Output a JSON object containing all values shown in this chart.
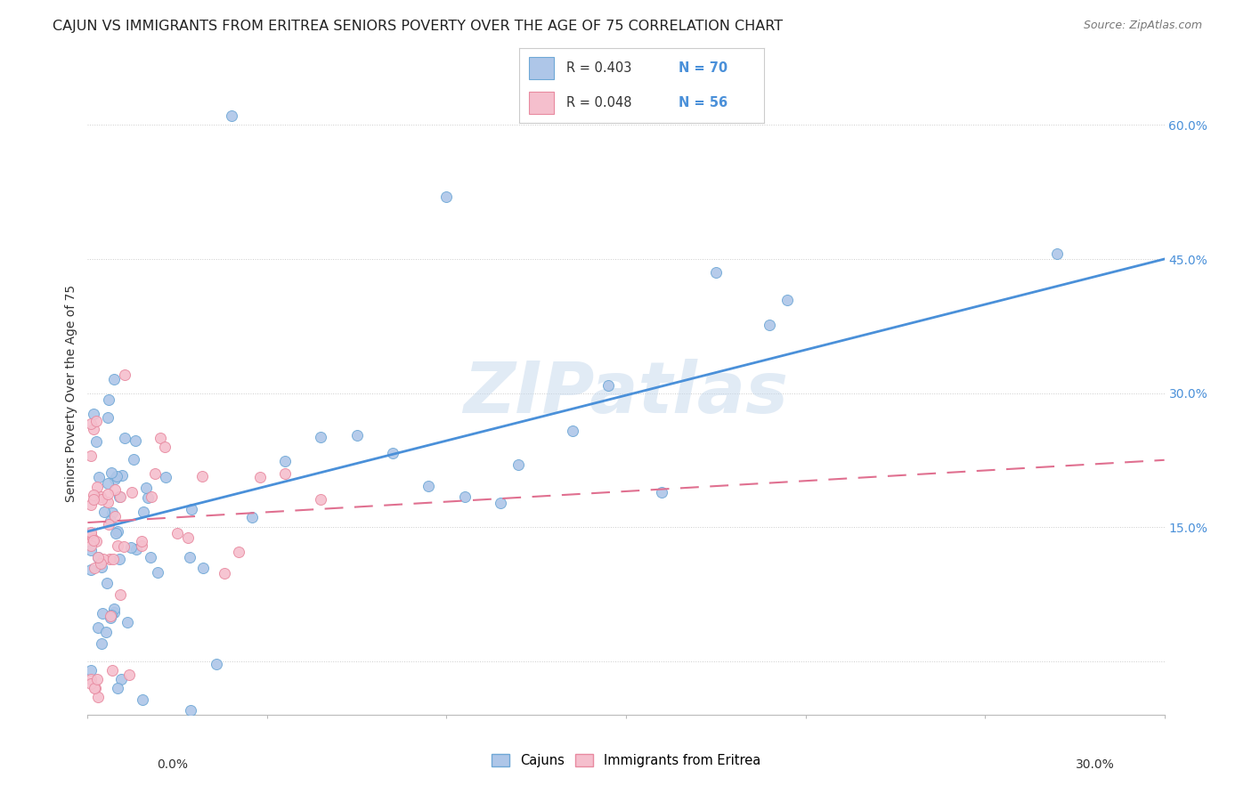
{
  "title": "CAJUN VS IMMIGRANTS FROM ERITREA SENIORS POVERTY OVER THE AGE OF 75 CORRELATION CHART",
  "source": "Source: ZipAtlas.com",
  "ylabel": "Seniors Poverty Over the Age of 75",
  "xmin": 0.0,
  "xmax": 0.3,
  "ymin": -0.06,
  "ymax": 0.66,
  "watermark": "ZIPatlas",
  "cajun_color": "#aec6e8",
  "cajun_edge_color": "#6fa8d6",
  "eritrea_color": "#f5bfcd",
  "eritrea_edge_color": "#e88aa0",
  "trend_cajun_color": "#4a90d9",
  "trend_eritrea_color": "#e07090",
  "grid_color": "#cccccc",
  "background_color": "#ffffff",
  "title_fontsize": 11.5,
  "axis_label_fontsize": 10,
  "tick_fontsize": 10,
  "legend_fontsize": 11,
  "ytick_vals": [
    0.0,
    0.15,
    0.3,
    0.45,
    0.6
  ],
  "ytick_labels": [
    "",
    "15.0%",
    "30.0%",
    "45.0%",
    "60.0%"
  ],
  "cajun_trend_y0": 0.145,
  "cajun_trend_y1": 0.45,
  "eritrea_trend_y0": 0.155,
  "eritrea_trend_y1": 0.225
}
